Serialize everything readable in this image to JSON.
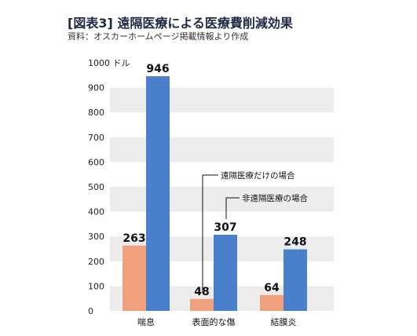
{
  "title": "[図表3] 遠隔医療による医療費削減効果",
  "subtitle": "資料：オスカーホームページ掲載情報より作成",
  "colors": {
    "remote": "#f0a07c",
    "non_remote": "#4a7fcb",
    "band": "#ececec"
  },
  "chart_data": {
    "type": "bar",
    "title": "[図表3] 遠隔医療による医療費削減効果",
    "ylabel": "",
    "ylim": [
      0,
      1000
    ],
    "yticks": [
      0,
      100,
      200,
      300,
      400,
      500,
      600,
      700,
      800,
      900,
      1000
    ],
    "yunit": "1000 ドル",
    "grid": "alternating-bands",
    "categories": [
      "喘息",
      "表面的な傷",
      "結膜炎"
    ],
    "series": [
      {
        "name": "遠隔医療だけの場合",
        "values": [
          263,
          48,
          64
        ]
      },
      {
        "name": "非遠隔医療の場合",
        "values": [
          946,
          307,
          248
        ]
      }
    ],
    "annotations": [
      "遠隔医療だけの場合",
      "非遠隔医療の場合"
    ]
  }
}
